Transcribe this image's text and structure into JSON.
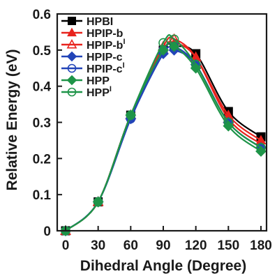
{
  "chart_data": {
    "type": "line",
    "xlabel": "Dihedral Angle (Degree)",
    "ylabel": "Relative Energy (eV)",
    "xlim": [
      0,
      180
    ],
    "ylim": [
      0,
      0.6
    ],
    "xticks": [
      "0",
      "30",
      "60",
      "90",
      "120",
      "150",
      "180"
    ],
    "yticks": [
      "0",
      "0.1",
      "0.2",
      "0.3",
      "0.4",
      "0.5",
      "0.6"
    ],
    "grid": false,
    "legend_position": "top-left",
    "series": [
      {
        "name": "HPBI",
        "sup": "",
        "color": "#000000",
        "marker": "square",
        "filled": true,
        "x": [
          0,
          30,
          60,
          90,
          100,
          120,
          150,
          180
        ],
        "y": [
          0,
          0.08,
          0.32,
          0.5,
          0.51,
          0.49,
          0.33,
          0.26
        ]
      },
      {
        "name": "HPIP-b",
        "sup": "",
        "color": "#e8231d",
        "marker": "triangle",
        "filled": true,
        "x": [
          0,
          30,
          60,
          90,
          100,
          120,
          150,
          180
        ],
        "y": [
          0,
          0.08,
          0.32,
          0.5,
          0.52,
          0.48,
          0.32,
          0.25
        ]
      },
      {
        "name": "HPIP-b",
        "sup": "I",
        "color": "#e8231d",
        "marker": "triangle",
        "filled": false,
        "x": [
          0,
          30,
          60,
          90,
          100,
          120,
          150,
          180
        ],
        "y": [
          0,
          0.08,
          0.32,
          0.51,
          0.53,
          0.48,
          0.31,
          0.24
        ]
      },
      {
        "name": "HPIP-c",
        "sup": "",
        "color": "#2244b8",
        "marker": "diamond",
        "filled": true,
        "x": [
          0,
          30,
          60,
          90,
          100,
          120,
          150,
          180
        ],
        "y": [
          0,
          0.08,
          0.31,
          0.49,
          0.5,
          0.46,
          0.3,
          0.23
        ]
      },
      {
        "name": "HPIP-c",
        "sup": "I",
        "color": "#2244b8",
        "marker": "circle",
        "filled": false,
        "x": [
          0,
          30,
          60,
          90,
          100,
          120,
          150,
          180
        ],
        "y": [
          0,
          0.08,
          0.31,
          0.5,
          0.51,
          0.46,
          0.3,
          0.23
        ]
      },
      {
        "name": "HPP",
        "sup": "",
        "color": "#1e9448",
        "marker": "diamond",
        "filled": true,
        "x": [
          0,
          30,
          60,
          90,
          100,
          120,
          150,
          180
        ],
        "y": [
          0,
          0.08,
          0.32,
          0.5,
          0.51,
          0.45,
          0.29,
          0.22
        ]
      },
      {
        "name": "HPP",
        "sup": "I",
        "color": "#1e9448",
        "marker": "circle",
        "filled": false,
        "x": [
          0,
          30,
          60,
          90,
          100,
          120,
          150,
          180
        ],
        "y": [
          0,
          0.08,
          0.32,
          0.52,
          0.53,
          0.46,
          0.3,
          0.23
        ]
      }
    ]
  }
}
